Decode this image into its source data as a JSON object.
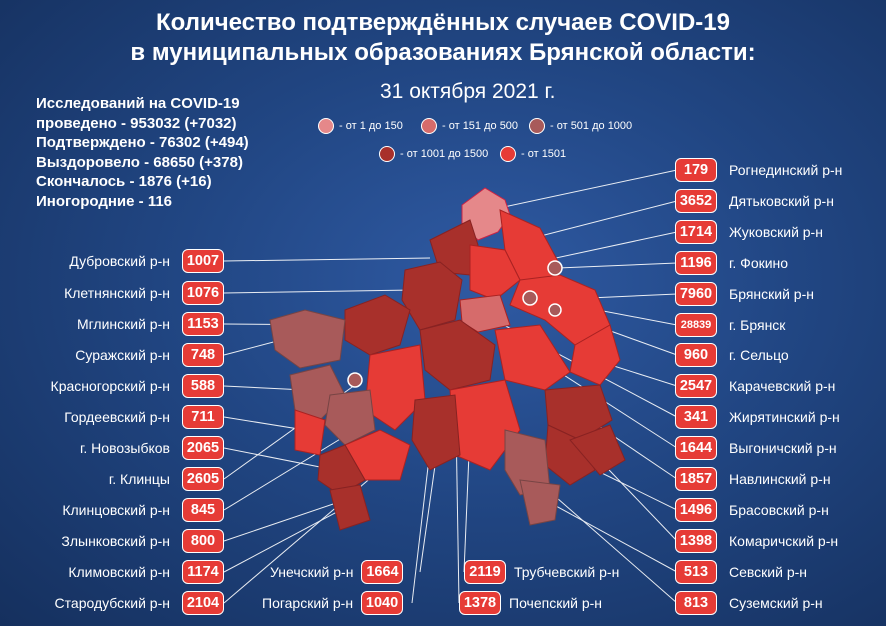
{
  "title": {
    "line1": "Количество подтверждённых случаев COVID-19",
    "line2": "в муниципальных образованиях Брянской области:",
    "date": "31 октября 2021 г."
  },
  "stats": [
    "Исследований на COVID-19",
    "проведено - 953032 (+7032)",
    "Подтверждено - 76302 (+494)",
    "Выздоровело - 68650 (+378)",
    "Скончалось - 1876 (+16)",
    "Иногородние - 116"
  ],
  "legend": [
    {
      "label": "- от 1 до 150",
      "color": "#e5888a"
    },
    {
      "label": "- от 151 до 500",
      "color": "#d66b6b"
    },
    {
      "label": "- от 501 до 1000",
      "color": "#a85a5a"
    },
    {
      "label": "- от 1001 до 1500",
      "color": "#a8302b"
    },
    {
      "label": "- от 1501",
      "color": "#e63b36"
    }
  ],
  "left_districts": [
    {
      "name": "Дубровский р-н",
      "value": "1007"
    },
    {
      "name": "Клетнянский р-н",
      "value": "1076"
    },
    {
      "name": "Мглинский р-н",
      "value": "1153"
    },
    {
      "name": "Суражский р-н",
      "value": "748"
    },
    {
      "name": "Красногорский р-н",
      "value": "588"
    },
    {
      "name": "Гордеевский р-н",
      "value": "711"
    },
    {
      "name": "г. Новозыбков",
      "value": "2065"
    },
    {
      "name": "г. Клинцы",
      "value": "2605"
    },
    {
      "name": "Клинцовский р-н",
      "value": "845"
    },
    {
      "name": "Злынковский р-н",
      "value": "800"
    },
    {
      "name": "Климовский р-н",
      "value": "1174"
    },
    {
      "name": "Стародубский р-н",
      "value": "2104"
    }
  ],
  "right_districts": [
    {
      "name": "Рогнединский р-н",
      "value": "179"
    },
    {
      "name": "Дятьковский р-н",
      "value": "3652"
    },
    {
      "name": "Жуковский р-н",
      "value": "1714"
    },
    {
      "name": "г. Фокино",
      "value": "1196"
    },
    {
      "name": "Брянский р-н",
      "value": "7960"
    },
    {
      "name": "г. Брянск",
      "value": "28839"
    },
    {
      "name": "г. Сельцо",
      "value": "960"
    },
    {
      "name": "Карачевский р-н",
      "value": "2547"
    },
    {
      "name": "Жирятинский р-н",
      "value": "341"
    },
    {
      "name": "Выгоничский р-н",
      "value": "1644"
    },
    {
      "name": "Навлинский р-н",
      "value": "1857"
    },
    {
      "name": "Брасовский р-н",
      "value": "1496"
    },
    {
      "name": "Комаричский р-н",
      "value": "1398"
    },
    {
      "name": "Севский р-н",
      "value": "513"
    },
    {
      "name": "Суземский р-н",
      "value": "813"
    }
  ],
  "bottom": {
    "unecha": {
      "name": "Унечский р-н",
      "value": "1664"
    },
    "trubchevsk": {
      "name": "Трубчевский р-н",
      "value": "2119"
    },
    "pogar": {
      "name": "Погарский р-н",
      "value": "1040"
    },
    "pochep": {
      "name": "Почепский р-н",
      "value": "1378"
    }
  }
}
